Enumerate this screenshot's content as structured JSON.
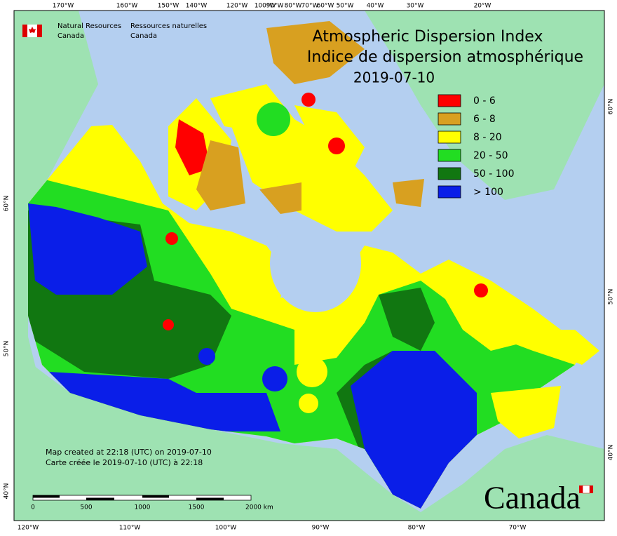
{
  "title": {
    "line1": "Atmospheric Dispersion Index",
    "line2": "Indice de dispersion atmosphérique",
    "date": "2019-07-10"
  },
  "agency": {
    "en": [
      "Natural Resources",
      "Canada"
    ],
    "fr": [
      "Ressources naturelles",
      "Canada"
    ]
  },
  "legend": [
    {
      "label": "0 - 6",
      "color": "#ff0000"
    },
    {
      "label": "6 - 8",
      "color": "#d8a020"
    },
    {
      "label": "8 - 20",
      "color": "#ffff00"
    },
    {
      "label": "20 - 50",
      "color": "#22dd22"
    },
    {
      "label": "50 - 100",
      "color": "#117711"
    },
    {
      "label": "> 100",
      "color": "#0a1ee8"
    }
  ],
  "graticule": {
    "top": [
      "170°W",
      "160°W",
      "150°W",
      "140°W",
      "120°W",
      "100°W",
      "90°W",
      "80°W",
      "70°W",
      "60°W",
      "50°W",
      "40°W",
      "30°W",
      "20°W"
    ],
    "bottom": [
      "120°W",
      "110°W",
      "100°W",
      "90°W",
      "80°W",
      "70°W"
    ],
    "left": [
      "60°N",
      "50°N",
      "40°N"
    ],
    "right": [
      "60°N",
      "50°N",
      "40°N"
    ]
  },
  "note": {
    "en": "Map created at 22:18 (UTC) on 2019-07-10",
    "fr": "Carte créée le 2019-07-10 (UTC) à 22:18"
  },
  "scale_bar": [
    "0",
    "500",
    "1000",
    "1500",
    "2000 km"
  ],
  "wordmark": "Canada"
}
